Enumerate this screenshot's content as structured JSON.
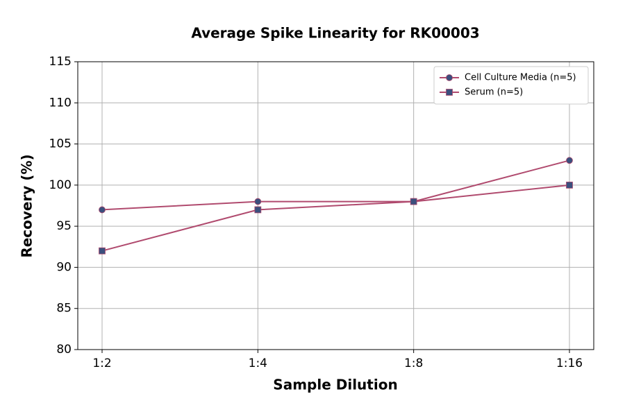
{
  "chart_data": {
    "type": "line",
    "title": "Average Spike Linearity for RK00003",
    "x_label": "Sample Dilution",
    "y_label": "Recovery (%)",
    "categories": [
      "1:2",
      "1:4",
      "1:8",
      "1:16"
    ],
    "series": [
      {
        "name": "Cell Culture Media (n=5)",
        "color": "#b04a6e",
        "marker_color": "#3b4f7d",
        "marker": "circle",
        "values": [
          97,
          98,
          98,
          103
        ]
      },
      {
        "name": "Serum (n=5)",
        "color": "#b04a6e",
        "marker_color": "#3b4f7d",
        "marker": "square",
        "values": [
          92,
          97,
          98,
          100
        ]
      }
    ],
    "ylim": [
      80,
      115
    ],
    "yticks": [
      80,
      85,
      90,
      95,
      100,
      105,
      110,
      115
    ],
    "grid": true,
    "legend": "upper right"
  }
}
